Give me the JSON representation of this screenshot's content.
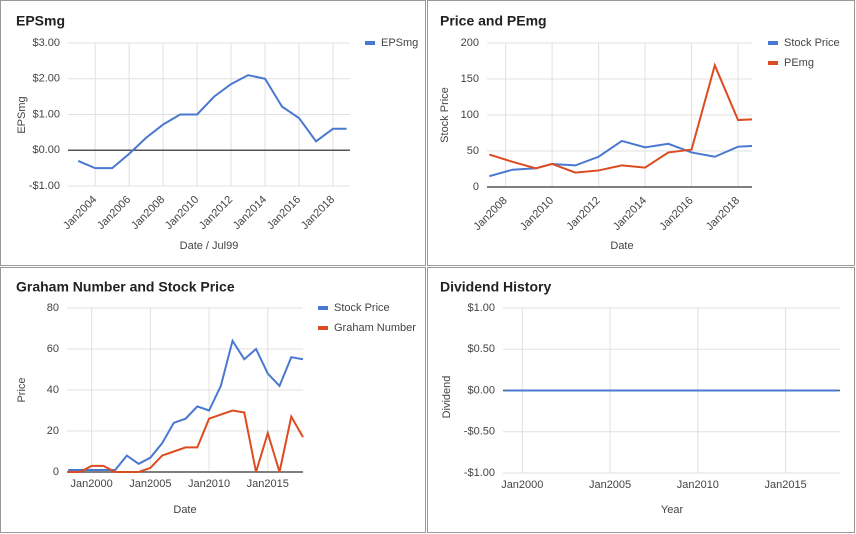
{
  "chart_data": [
    {
      "type": "line",
      "title": "EPSmg",
      "x_label": "Date / Jul99",
      "y_label": "EPSmg",
      "x": [
        2003,
        2004,
        2005,
        2006,
        2007,
        2008,
        2009,
        2010,
        2011,
        2012,
        2013,
        2014,
        2015,
        2016,
        2017,
        2018,
        2018.8
      ],
      "series": [
        {
          "name": "EPSmg",
          "color": "#4a78d0",
          "values": [
            -0.3,
            -0.5,
            -0.5,
            -0.1,
            0.35,
            0.72,
            1.0,
            1.0,
            1.5,
            1.85,
            2.1,
            2.0,
            1.22,
            0.9,
            0.25,
            0.6,
            0.6
          ]
        }
      ],
      "xlim": [
        2002.4,
        2019.0
      ],
      "xticks": [
        {
          "value": 2004,
          "label": "Jan2004"
        },
        {
          "value": 2006,
          "label": "Jan2006"
        },
        {
          "value": 2008,
          "label": "Jan2008"
        },
        {
          "value": 2010,
          "label": "Jan2010"
        },
        {
          "value": 2012,
          "label": "Jan2012"
        },
        {
          "value": 2014,
          "label": "Jan2014"
        },
        {
          "value": 2016,
          "label": "Jan2016"
        },
        {
          "value": 2018,
          "label": "Jan2018"
        }
      ],
      "ylim": [
        -1,
        3
      ],
      "yticks": [
        {
          "value": -1,
          "label": "-$1.00"
        },
        {
          "value": 0,
          "label": "$0.00"
        },
        {
          "value": 1,
          "label": "$1.00"
        },
        {
          "value": 2,
          "label": "$2.00"
        },
        {
          "value": 3,
          "label": "$3.00"
        }
      ],
      "grid": true,
      "legend": "right"
    },
    {
      "type": "line",
      "title": "Price and PEmg",
      "x_label": "Date",
      "y_label": "Stock Price",
      "x": [
        2007.3,
        2008.3,
        2009.3,
        2010,
        2011,
        2012,
        2013,
        2014,
        2015,
        2016,
        2017,
        2018,
        2018.6
      ],
      "series": [
        {
          "name": "Stock Price",
          "color": "#4a78d0",
          "values": [
            15,
            24,
            26,
            32,
            30,
            42,
            64,
            55,
            60,
            48,
            42,
            56,
            57
          ]
        },
        {
          "name": "PEmg",
          "color": "#dd4b21",
          "values": [
            45,
            35,
            26,
            32,
            20,
            23,
            30,
            27,
            48,
            52,
            169,
            93,
            94
          ]
        }
      ],
      "xlim": [
        2007.2,
        2018.6
      ],
      "xticks": [
        {
          "value": 2008,
          "label": "Jan2008"
        },
        {
          "value": 2010,
          "label": "Jan2010"
        },
        {
          "value": 2012,
          "label": "Jan2012"
        },
        {
          "value": 2014,
          "label": "Jan2014"
        },
        {
          "value": 2016,
          "label": "Jan2016"
        },
        {
          "value": 2018,
          "label": "Jan2018"
        }
      ],
      "ylim": [
        0,
        200
      ],
      "yticks": [
        0,
        50,
        100,
        150,
        200
      ],
      "grid": true,
      "legend": "right"
    },
    {
      "type": "line",
      "title": "Graham Number and Stock Price",
      "x_label": "Date",
      "y_label": "Price",
      "x": [
        1998,
        1999,
        2000,
        2001,
        2002,
        2003,
        2004,
        2005,
        2006,
        2007,
        2008,
        2009,
        2010,
        2011,
        2012,
        2013,
        2014,
        2015,
        2016,
        2017,
        2018
      ],
      "series": [
        {
          "name": "Stock Price",
          "color": "#4a78d0",
          "values": [
            1,
            1,
            1,
            1,
            1,
            8,
            4,
            7,
            14,
            24,
            26,
            32,
            30,
            42,
            64,
            55,
            60,
            48,
            42,
            56,
            55
          ]
        },
        {
          "name": "Graham Number",
          "color": "#dd4b21",
          "values": [
            0,
            0,
            3,
            3,
            0,
            0,
            0,
            2,
            8,
            10,
            12,
            12,
            26,
            28,
            30,
            29,
            0,
            19,
            0,
            27,
            17
          ]
        }
      ],
      "xlim": [
        1997.9,
        2018.0
      ],
      "xticks": [
        {
          "value": 2000,
          "label": "Jan2000"
        },
        {
          "value": 2005,
          "label": "Jan2005"
        },
        {
          "value": 2010,
          "label": "Jan2010"
        },
        {
          "value": 2015,
          "label": "Jan2015"
        }
      ],
      "ylim": [
        0,
        80
      ],
      "yticks": [
        0,
        20,
        40,
        60,
        80
      ],
      "grid": true,
      "legend": "right"
    },
    {
      "type": "line",
      "title": "Dividend History",
      "x_label": "Year",
      "y_label": "Dividend",
      "x": [
        1999,
        2000,
        2001,
        2002,
        2003,
        2004,
        2005,
        2006,
        2007,
        2008,
        2009,
        2010,
        2011,
        2012,
        2013,
        2014,
        2015,
        2016,
        2017,
        2018
      ],
      "series": [
        {
          "color": "#4a78d0",
          "values": [
            0,
            0,
            0,
            0,
            0,
            0,
            0,
            0,
            0,
            0,
            0,
            0,
            0,
            0,
            0,
            0,
            0,
            0,
            0,
            0
          ]
        }
      ],
      "xlim": [
        1998.9,
        2018.1
      ],
      "xticks": [
        {
          "value": 2000,
          "label": "Jan2000"
        },
        {
          "value": 2005,
          "label": "Jan2005"
        },
        {
          "value": 2010,
          "label": "Jan2010"
        },
        {
          "value": 2015,
          "label": "Jan2015"
        }
      ],
      "ylim": [
        -1,
        1
      ],
      "yticks": [
        {
          "value": -1,
          "label": "-$1.00"
        },
        {
          "value": -0.5,
          "label": "-$0.50"
        },
        {
          "value": 0,
          "label": "$0.00"
        },
        {
          "value": 0.5,
          "label": "$0.50"
        },
        {
          "value": 1,
          "label": "$1.00"
        }
      ],
      "grid": true,
      "legend": "none"
    }
  ]
}
